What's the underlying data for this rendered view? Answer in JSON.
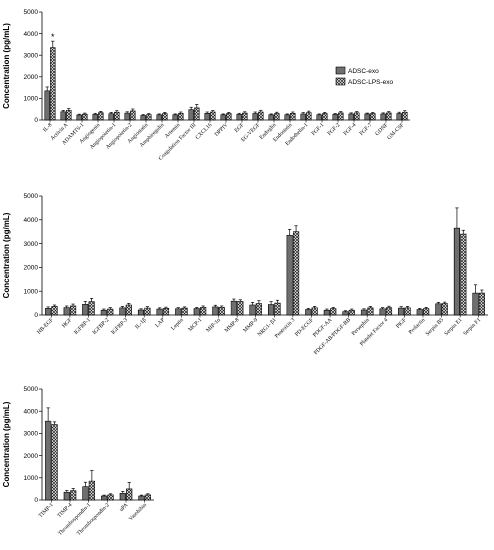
{
  "legend": {
    "items": [
      {
        "label": "ADSC-exo",
        "pattern": "vertical-hatch"
      },
      {
        "label": "ADSC-LPS-exo",
        "pattern": "crosshatch"
      }
    ]
  },
  "colors": {
    "fill_exo": "#8c8c8c",
    "fill_lps": "#ffffff",
    "stroke": "#000000"
  },
  "chart_data": [
    {
      "type": "bar",
      "ylabel": "Concentration (pg/mL)",
      "ylim": [
        0,
        5000
      ],
      "yticks": [
        "0",
        "1000",
        "2000",
        "3000",
        "4000",
        "5000"
      ],
      "grid": false,
      "legend_position": "top-right",
      "categories": [
        "IL-8",
        "Activin A",
        "ADAMTS-1",
        "Angiogenin",
        "Angiopoietin-1",
        "Angiopoietin-2",
        "Angiostatin",
        "Amphiregulin",
        "Artemin",
        "Coagulation Factor III",
        "CXCL16",
        "DPPIV",
        "EGF",
        "EG-VEGF",
        "Endoglin",
        "Endostatin",
        "Endothelin-1",
        "FGF-1",
        "FGF-2",
        "FGF-4",
        "FGF-7",
        "GDNF",
        "GM-CSF"
      ],
      "series": [
        {
          "name": "ADSC-exo",
          "values": [
            1350,
            380,
            230,
            260,
            290,
            320,
            210,
            240,
            240,
            480,
            310,
            240,
            260,
            300,
            240,
            240,
            280,
            240,
            260,
            280,
            280,
            280,
            300
          ],
          "errors": [
            180,
            60,
            40,
            50,
            60,
            60,
            40,
            40,
            40,
            110,
            60,
            40,
            50,
            70,
            40,
            40,
            60,
            40,
            40,
            50,
            40,
            50,
            60
          ]
        },
        {
          "name": "ADSC-LPS-exo",
          "values": [
            3350,
            450,
            270,
            340,
            360,
            420,
            250,
            300,
            310,
            560,
            370,
            300,
            320,
            370,
            300,
            310,
            340,
            300,
            330,
            330,
            300,
            330,
            360
          ],
          "errors": [
            300,
            80,
            50,
            60,
            70,
            90,
            50,
            50,
            60,
            160,
            70,
            50,
            60,
            80,
            60,
            60,
            70,
            50,
            60,
            60,
            50,
            60,
            70
          ]
        }
      ],
      "annotations": [
        {
          "category": "IL-8",
          "series": "ADSC-LPS-exo",
          "text": "*"
        }
      ]
    },
    {
      "type": "bar",
      "ylabel": "Concentration (pg/mL)",
      "ylim": [
        0,
        5000
      ],
      "yticks": [
        "0",
        "1000",
        "2000",
        "3000",
        "4000",
        "5000"
      ],
      "grid": false,
      "categories": [
        "HB-EGF",
        "HGF",
        "IGFBP-1",
        "IGFBP-2",
        "IGFBP-3",
        "IL-1β",
        "LAP",
        "Leptin",
        "MCP-1",
        "MIP-1α",
        "MMP-8",
        "MMP-9",
        "NRG1- β1",
        "Pentraxin 3",
        "PD-ECGF",
        "PDGF-AA",
        "PDGF-AB/PDGF-BB",
        "Persephin",
        "Platelet Factor 4",
        "PlGF",
        "Prolactin",
        "Serpin B5",
        "Serpin E1",
        "Serpin F1"
      ],
      "series": [
        {
          "name": "ADSC-exo",
          "values": [
            280,
            310,
            450,
            200,
            300,
            210,
            250,
            260,
            270,
            340,
            580,
            420,
            440,
            3350,
            230,
            200,
            140,
            210,
            260,
            290,
            230,
            470,
            3650,
            920
          ],
          "errors": [
            60,
            70,
            120,
            50,
            60,
            50,
            50,
            50,
            50,
            70,
            90,
            110,
            120,
            250,
            50,
            50,
            40,
            50,
            50,
            60,
            50,
            60,
            850,
            350
          ]
        },
        {
          "name": "ADSC-LPS-exo",
          "values": [
            360,
            380,
            560,
            250,
            420,
            290,
            280,
            290,
            320,
            320,
            570,
            480,
            500,
            3500,
            300,
            270,
            200,
            300,
            310,
            300,
            270,
            480,
            3400,
            920
          ],
          "errors": [
            60,
            80,
            140,
            60,
            70,
            60,
            50,
            50,
            60,
            60,
            70,
            120,
            120,
            250,
            60,
            50,
            50,
            60,
            60,
            60,
            50,
            60,
            160,
            130
          ]
        }
      ]
    },
    {
      "type": "bar",
      "ylabel": "Concentration (pg/mL)",
      "ylim": [
        0,
        5000
      ],
      "yticks": [
        "0",
        "1000",
        "2000",
        "3000",
        "4000",
        "5000"
      ],
      "grid": false,
      "categories": [
        "TIMP-1",
        "TIMP-4",
        "Thrombospondin-1",
        "Thrombospondin-2",
        "uPA",
        "Vasohibin"
      ],
      "series": [
        {
          "name": "ADSC-exo",
          "values": [
            3550,
            350,
            600,
            180,
            300,
            180
          ],
          "errors": [
            600,
            80,
            200,
            40,
            90,
            40
          ]
        },
        {
          "name": "ADSC-LPS-exo",
          "values": [
            3400,
            420,
            850,
            230,
            500,
            230
          ],
          "errors": [
            120,
            100,
            480,
            50,
            290,
            50
          ]
        }
      ]
    }
  ]
}
